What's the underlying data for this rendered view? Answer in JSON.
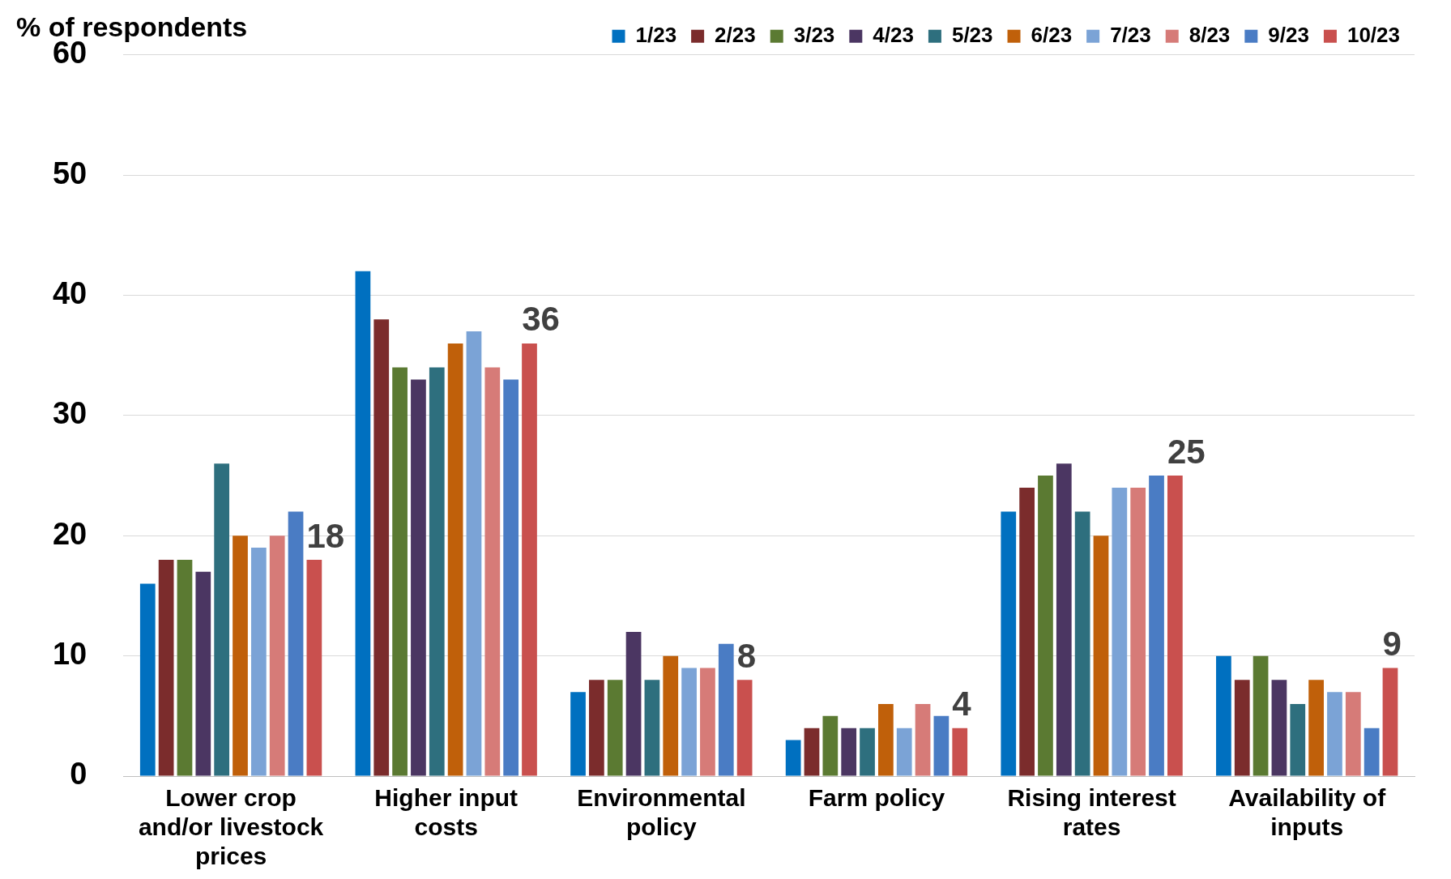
{
  "chart_data": {
    "type": "bar",
    "ylabel": "% of respondents",
    "categories": [
      "Lower crop and/or livestock prices",
      "Higher input costs",
      "Environmental policy",
      "Farm policy",
      "Rising interest rates",
      "Availability of inputs"
    ],
    "series": [
      {
        "name": "1/23",
        "color": "#0070c0",
        "values": [
          16,
          42,
          7,
          3,
          22,
          10
        ]
      },
      {
        "name": "2/23",
        "color": "#7b2c2c",
        "values": [
          18,
          38,
          8,
          4,
          24,
          8
        ]
      },
      {
        "name": "3/23",
        "color": "#5b7a32",
        "values": [
          18,
          34,
          8,
          5,
          25,
          10
        ]
      },
      {
        "name": "4/23",
        "color": "#4b3662",
        "values": [
          17,
          33,
          12,
          4,
          26,
          8
        ]
      },
      {
        "name": "5/23",
        "color": "#2e6f7e",
        "values": [
          26,
          34,
          8,
          4,
          22,
          6
        ]
      },
      {
        "name": "6/23",
        "color": "#c0600a",
        "values": [
          20,
          36,
          10,
          6,
          20,
          8
        ]
      },
      {
        "name": "7/23",
        "color": "#7ba3d6",
        "values": [
          19,
          37,
          9,
          4,
          24,
          7
        ]
      },
      {
        "name": "8/23",
        "color": "#d67b78",
        "values": [
          20,
          34,
          9,
          6,
          24,
          7
        ]
      },
      {
        "name": "9/23",
        "color": "#4a7cc4",
        "values": [
          22,
          33,
          11,
          5,
          25,
          4
        ]
      },
      {
        "name": "10/23",
        "color": "#c9504e",
        "values": [
          18,
          36,
          8,
          4,
          25,
          9
        ],
        "value_labels": [
          "18",
          "36",
          "8",
          "4",
          "25",
          "9"
        ]
      }
    ],
    "ylim": [
      0,
      60
    ],
    "yticks": [
      0,
      10,
      20,
      30,
      40,
      50,
      60
    ],
    "grid": "y",
    "legend": "top"
  }
}
